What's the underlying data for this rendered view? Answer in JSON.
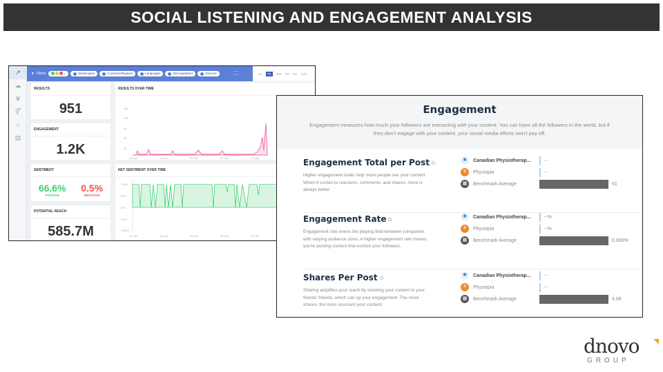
{
  "slide": {
    "title": "SOCIAL LISTENING AND ENGAGEMENT ANALYSIS"
  },
  "dashboard": {
    "filters_label": "Filters",
    "filter_count": "1",
    "pills": [
      "Media types",
      "Countries/Regions",
      "Languages",
      "Demographics",
      "Devices"
    ],
    "time_ranges": [
      "1D",
      "7D",
      "30D",
      "3M",
      "6M",
      "12M"
    ],
    "selected_range": "7D",
    "results": {
      "label": "RESULTS",
      "value": "951"
    },
    "engagement": {
      "label": "ENGAGEMENT",
      "value": "1.2K"
    },
    "sentiment": {
      "label": "SENTIMENT",
      "positive": "66.6%",
      "positive_label": "POSITIVE",
      "negative": "0.5%",
      "negative_label": "NEGATIVE"
    },
    "reach": {
      "label": "POTENTIAL REACH",
      "value": "585.7M"
    },
    "results_chart": {
      "title": "RESULTS OVER TIME",
      "yticks": [
        "150",
        "120",
        "90",
        "60",
        "30"
      ],
      "xticks": [
        "23 Jan",
        "24 Jan",
        "25 Jan",
        "26 Jan",
        "27 Jan"
      ]
    },
    "sentiment_chart": {
      "title": "NET SENTIMENT OVER TIME",
      "yticks": [
        "100%",
        "50%",
        "0%",
        "-50%",
        "-100%"
      ],
      "xticks": [
        "23 Jan",
        "24 Jan",
        "25 Jan",
        "26 Jan",
        "27 Jan"
      ]
    },
    "colors": {
      "topbar": "#5b80d8",
      "pink": "#f06aa8",
      "green": "#3ecf72",
      "negative": "#ef5350"
    }
  },
  "engagement_panel": {
    "title": "Engagement",
    "intro": "Engagement measures how much your followers are interacting with your content. You can have all the followers in the world, but if they don't engage with your content, your social media efforts won't pay off.",
    "sections": [
      {
        "title": "Engagement Total per Post",
        "desc": "Higher engagement totals help more people see your content. When it comes to reactions, comments, and shares, more is always better.",
        "metrics": [
          {
            "name": "Canadian Physiotherap...",
            "value": "--"
          },
          {
            "name": "Physiopia",
            "value": "--"
          },
          {
            "name": "Benchmark Average",
            "value": "91"
          }
        ]
      },
      {
        "title": "Engagement Rate",
        "desc": "Engagement rate evens the playing field between companies with varying audience sizes. A higher engagement rate means you're posting content that excites your followers.",
        "metrics": [
          {
            "name": "Canadian Physiotherap...",
            "value": "--%"
          },
          {
            "name": "Physiopia",
            "value": "--%"
          },
          {
            "name": "Benchmark Average",
            "value": "0.060%"
          }
        ]
      },
      {
        "title": "Shares Per Post",
        "desc": "Sharing amplifies your reach by showing your content to your friends' friends, which can up your engagement. The more shares, the more resonant your content.",
        "metrics": [
          {
            "name": "Canadian Physiotherap...",
            "value": "--"
          },
          {
            "name": "Physiopia",
            "value": "--"
          },
          {
            "name": "Benchmark Average",
            "value": "5.08"
          }
        ]
      }
    ]
  },
  "logo": {
    "text": "dnovo",
    "sub": "GROUP"
  }
}
